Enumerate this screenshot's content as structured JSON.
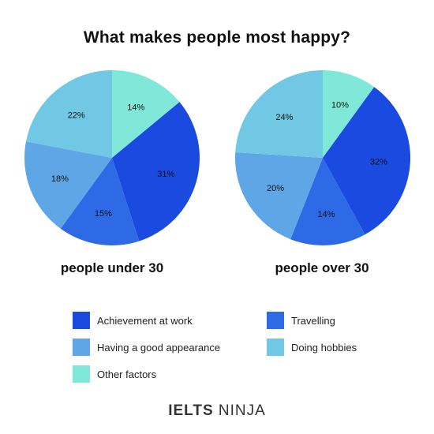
{
  "colors": {
    "achievement": "#1a4ae0",
    "travelling": "#2f6ae6",
    "appearance": "#5ea6e6",
    "hobbies": "#71c8e4",
    "other": "#7fe8d8"
  },
  "chart_data": {
    "type": "pie",
    "title": "What makes people most happy?",
    "legend_placement": "bottom",
    "legend": [
      {
        "key": "achievement",
        "label": "Achievement at work"
      },
      {
        "key": "appearance",
        "label": "Having a good appearance"
      },
      {
        "key": "other",
        "label": "Other factors"
      },
      {
        "key": "travelling",
        "label": "Travelling"
      },
      {
        "key": "hobbies",
        "label": "Doing hobbies"
      }
    ],
    "pies": [
      {
        "name": "people under 30",
        "slices": [
          {
            "key": "other",
            "value": 14,
            "label": "14%"
          },
          {
            "key": "achievement",
            "value": 31,
            "label": "31%"
          },
          {
            "key": "travelling",
            "value": 15,
            "label": "15%"
          },
          {
            "key": "appearance",
            "value": 18,
            "label": "18%"
          },
          {
            "key": "hobbies",
            "value": 22,
            "label": "22%"
          }
        ]
      },
      {
        "name": "people over 30",
        "slices": [
          {
            "key": "other",
            "value": 10,
            "label": "10%"
          },
          {
            "key": "achievement",
            "value": 32,
            "label": "32%"
          },
          {
            "key": "travelling",
            "value": 14,
            "label": "14%"
          },
          {
            "key": "appearance",
            "value": 20,
            "label": "20%"
          },
          {
            "key": "hobbies",
            "value": 24,
            "label": "24%"
          }
        ]
      }
    ]
  },
  "branding": {
    "part1": "IELTS",
    "part2": "NINJA"
  }
}
